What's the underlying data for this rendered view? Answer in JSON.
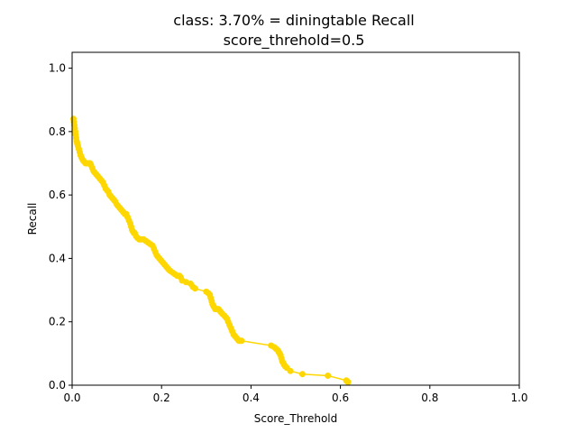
{
  "chart_data": {
    "type": "line",
    "title_line1": "class: 3.70% = diningtable Recall",
    "title_line2": "score_threhold=0.5",
    "xlabel": "Score_Threhold",
    "ylabel": "Recall",
    "xlim": [
      0.0,
      1.0
    ],
    "ylim": [
      0.0,
      1.05
    ],
    "x_ticks": [
      "0.0",
      "0.2",
      "0.4",
      "0.6",
      "0.8",
      "1.0"
    ],
    "y_ticks": [
      "0.0",
      "0.2",
      "0.4",
      "0.6",
      "0.8",
      "1.0"
    ],
    "grid": false,
    "series": [
      {
        "color": "#ffd700",
        "marker": "circle",
        "x": [
          0.003,
          0.004,
          0.005,
          0.006,
          0.007,
          0.008,
          0.009,
          0.01,
          0.011,
          0.012,
          0.013,
          0.015,
          0.017,
          0.019,
          0.021,
          0.024,
          0.027,
          0.03,
          0.033,
          0.037,
          0.04,
          0.042,
          0.045,
          0.048,
          0.051,
          0.054,
          0.057,
          0.06,
          0.063,
          0.066,
          0.069,
          0.072,
          0.075,
          0.078,
          0.081,
          0.084,
          0.087,
          0.09,
          0.093,
          0.096,
          0.1,
          0.103,
          0.106,
          0.109,
          0.112,
          0.115,
          0.118,
          0.121,
          0.124,
          0.127,
          0.13,
          0.132,
          0.134,
          0.136,
          0.138,
          0.14,
          0.143,
          0.146,
          0.15,
          0.155,
          0.16,
          0.165,
          0.17,
          0.175,
          0.18,
          0.183,
          0.186,
          0.189,
          0.192,
          0.195,
          0.198,
          0.201,
          0.204,
          0.207,
          0.21,
          0.213,
          0.216,
          0.22,
          0.225,
          0.23,
          0.235,
          0.24,
          0.243,
          0.246,
          0.255,
          0.265,
          0.27,
          0.275,
          0.3,
          0.305,
          0.308,
          0.31,
          0.312,
          0.314,
          0.316,
          0.318,
          0.32,
          0.323,
          0.327,
          0.33,
          0.333,
          0.336,
          0.34,
          0.343,
          0.346,
          0.349,
          0.352,
          0.355,
          0.358,
          0.361,
          0.364,
          0.367,
          0.37,
          0.373,
          0.376,
          0.379,
          0.445,
          0.452,
          0.456,
          0.46,
          0.462,
          0.464,
          0.466,
          0.468,
          0.47,
          0.472,
          0.474,
          0.476,
          0.48,
          0.488,
          0.515,
          0.572,
          0.613,
          0.615,
          0.617
        ],
        "y": [
          0.84,
          0.83,
          0.82,
          0.81,
          0.8,
          0.79,
          0.78,
          0.77,
          0.765,
          0.76,
          0.755,
          0.745,
          0.735,
          0.725,
          0.718,
          0.71,
          0.705,
          0.7,
          0.7,
          0.7,
          0.7,
          0.695,
          0.685,
          0.675,
          0.67,
          0.665,
          0.66,
          0.655,
          0.65,
          0.645,
          0.64,
          0.63,
          0.62,
          0.615,
          0.61,
          0.6,
          0.595,
          0.59,
          0.585,
          0.58,
          0.57,
          0.565,
          0.56,
          0.555,
          0.55,
          0.545,
          0.54,
          0.54,
          0.53,
          0.52,
          0.51,
          0.5,
          0.49,
          0.485,
          0.48,
          0.48,
          0.47,
          0.465,
          0.46,
          0.46,
          0.46,
          0.455,
          0.45,
          0.445,
          0.44,
          0.43,
          0.42,
          0.41,
          0.405,
          0.4,
          0.395,
          0.39,
          0.385,
          0.38,
          0.375,
          0.37,
          0.365,
          0.36,
          0.355,
          0.35,
          0.345,
          0.345,
          0.34,
          0.33,
          0.325,
          0.32,
          0.31,
          0.305,
          0.295,
          0.29,
          0.285,
          0.275,
          0.265,
          0.255,
          0.25,
          0.245,
          0.24,
          0.24,
          0.24,
          0.235,
          0.23,
          0.225,
          0.22,
          0.215,
          0.21,
          0.2,
          0.19,
          0.18,
          0.17,
          0.16,
          0.155,
          0.15,
          0.145,
          0.14,
          0.14,
          0.14,
          0.125,
          0.12,
          0.115,
          0.11,
          0.105,
          0.1,
          0.095,
          0.085,
          0.075,
          0.07,
          0.065,
          0.06,
          0.055,
          0.045,
          0.035,
          0.03,
          0.015,
          0.012,
          0.01
        ]
      }
    ]
  }
}
